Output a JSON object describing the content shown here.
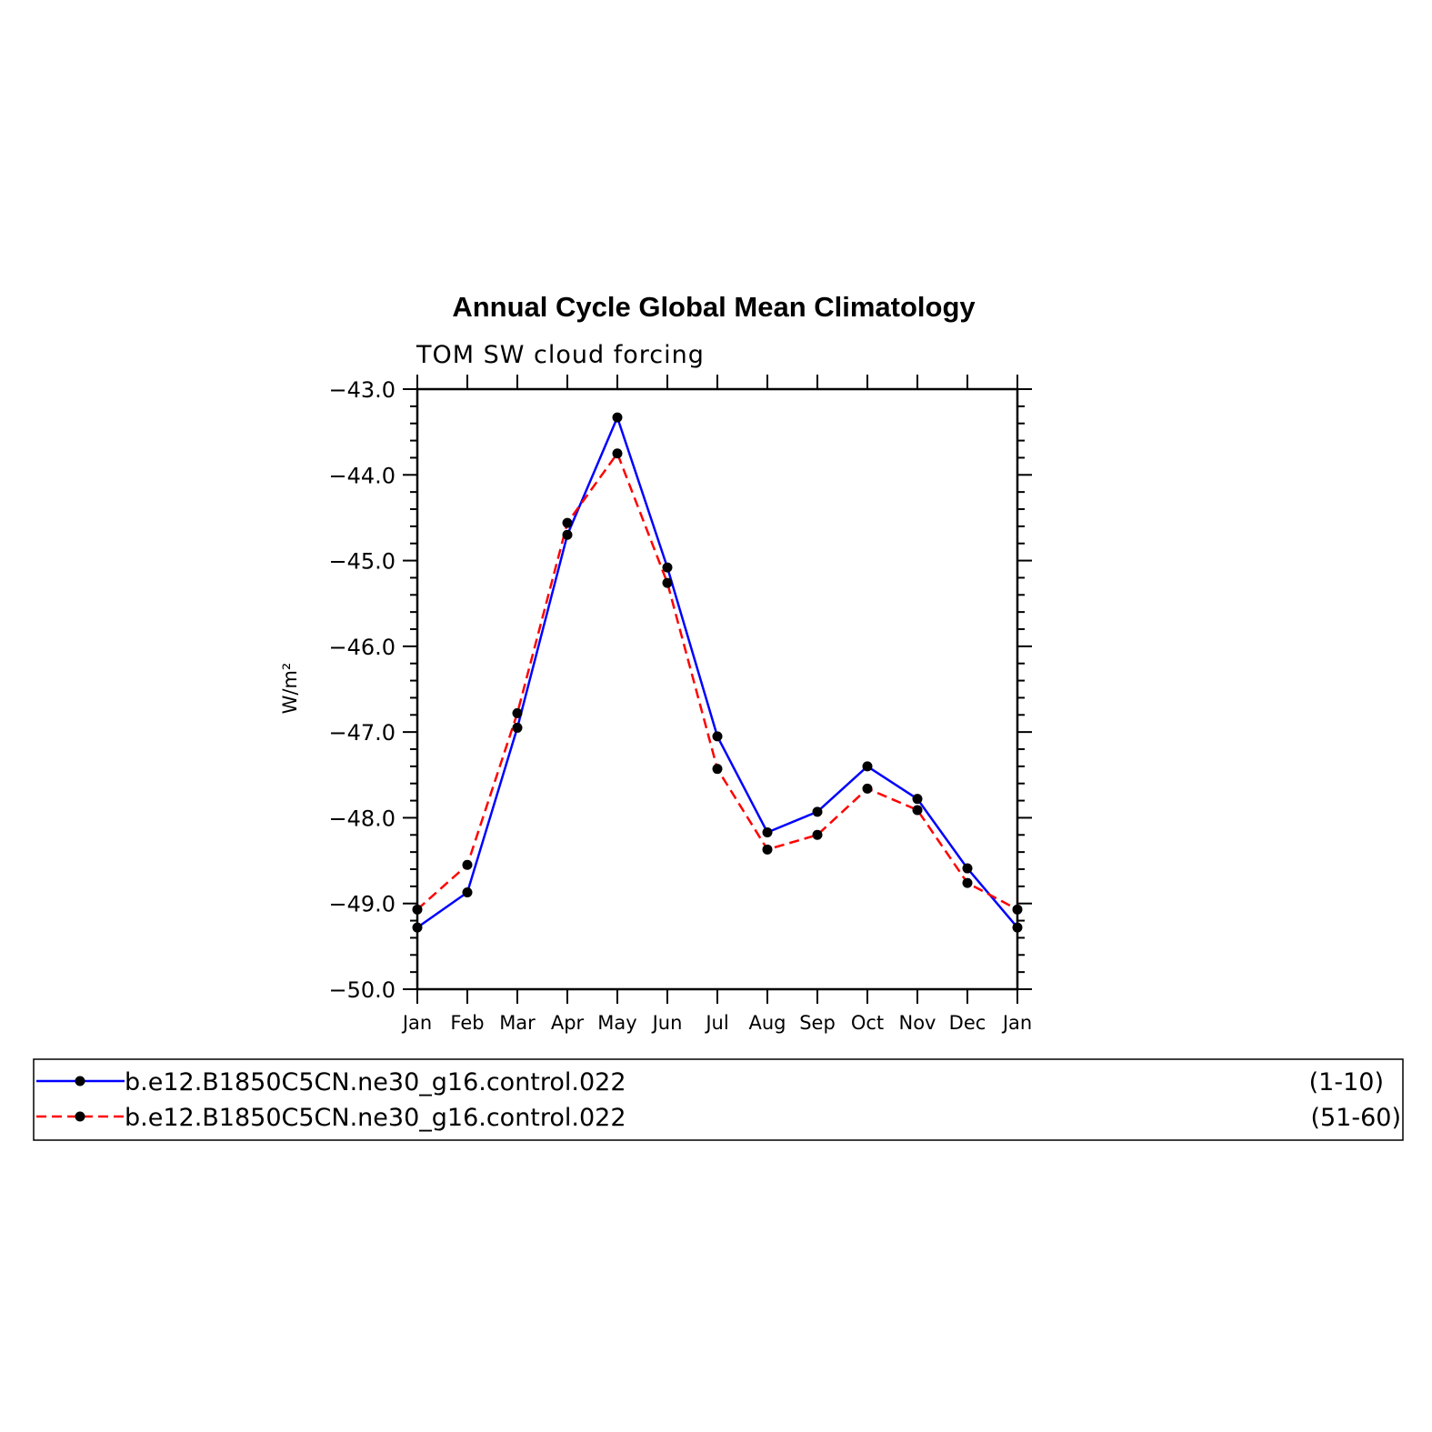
{
  "chart_data": {
    "type": "line",
    "title": "Annual Cycle Global Mean Climatology",
    "subtitle": "TOM SW cloud forcing",
    "ylabel": "W/m²",
    "xlabel": "",
    "categories": [
      "Jan",
      "Feb",
      "Mar",
      "Apr",
      "May",
      "Jun",
      "Jul",
      "Aug",
      "Sep",
      "Oct",
      "Nov",
      "Dec",
      "Jan"
    ],
    "ylim": [
      -50.0,
      -43.0
    ],
    "yticks": [
      "-43.0",
      "-44.0",
      "-45.0",
      "-46.0",
      "-47.0",
      "-48.0",
      "-49.0",
      "-50.0"
    ],
    "grid": false,
    "legend_position": "bottom",
    "series": [
      {
        "name": "b.e12.B1850C5CN.ne30_g16.control.022",
        "range": "(1-10)",
        "color": "#0000ff",
        "dash": "solid",
        "marker_color": "#000000",
        "values": [
          -49.28,
          -48.87,
          -46.95,
          -44.7,
          -43.33,
          -45.08,
          -47.05,
          -48.17,
          -47.93,
          -47.4,
          -47.78,
          -48.59,
          -49.28
        ]
      },
      {
        "name": "b.e12.B1850C5CN.ne30_g16.control.022",
        "range": "(51-60)",
        "color": "#ff0000",
        "dash": "dashed",
        "marker_color": "#000000",
        "values": [
          -49.07,
          -48.55,
          -46.78,
          -44.56,
          -43.75,
          -45.26,
          -47.43,
          -48.37,
          -48.2,
          -47.66,
          -47.91,
          -48.76,
          -49.07
        ]
      }
    ]
  }
}
